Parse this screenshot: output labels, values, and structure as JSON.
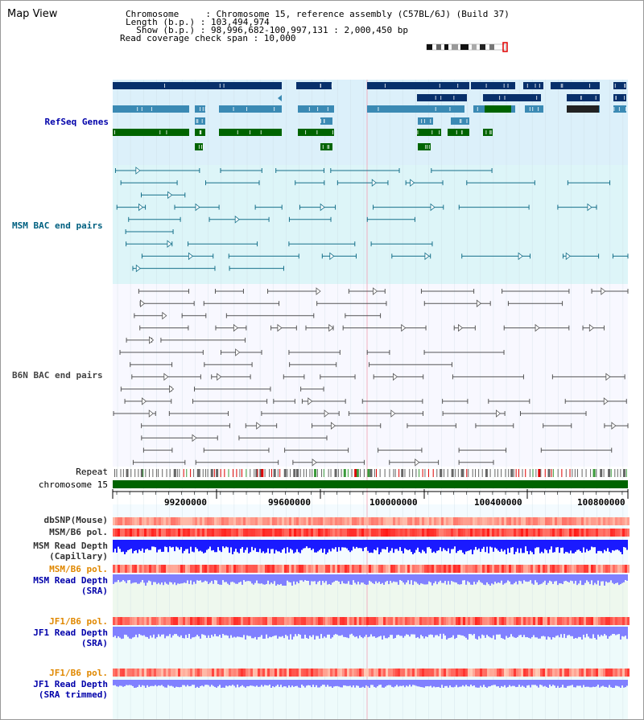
{
  "header": {
    "title": "Map View",
    "chromosome_label": "Chromosome     : Chromosome 15, reference assembly (C57BL/6J) (Build 37)",
    "length_label": "Length (b.p.) : 103,494,974",
    "show_label": "  Show (b.p.) : 98,996,682-100,997,131 : 2,000,450 bp",
    "coverage_label": "Read coverage check span : 10,000"
  },
  "tracks": {
    "refseq": "RefSeq Genes",
    "msm_bac": "MSM BAC end pairs",
    "b6n_bac": "B6N BAC end pairs",
    "repeat": "Repeat",
    "chromosome": "chromosome 15",
    "dbsnp": "dbSNP(Mouse)",
    "msm_b6_pol": "MSM/B6 pol.",
    "msm_depth_cap_1": "MSM Read Depth",
    "msm_depth_cap_2": "(Capillary)",
    "msm_b6_pol_2": "MSM/B6 pol.",
    "msm_depth_sra_1": "MSM Read Depth",
    "msm_depth_sra_2": "(SRA)",
    "jf1_b6_pol": "JF1/B6 pol.",
    "jf1_depth_sra_1": "JF1 Read Depth",
    "jf1_depth_sra_2": "(SRA)",
    "jf1_b6_pol_2": "JF1/B6 pol.",
    "jf1_depth_trim_1": "JF1 Read Depth",
    "jf1_depth_trim_2": "(SRA trimmed)"
  },
  "axis": {
    "ticks": [
      "99200000",
      "99600000",
      "100000000",
      "100400000",
      "100800000"
    ]
  },
  "colors": {
    "refseq_bg": "#dcf0fa",
    "msm_bg": "#ddf5f8",
    "b6n_bg": "#f8f8ff",
    "gene_dark": "#08306b",
    "gene_mid": "#3b8ab4",
    "gene_green": "#006400",
    "msm_line": "#16708a",
    "b6n_line": "#555555",
    "chrom_bar": "#006400",
    "depth_cap": "#1a1aff",
    "depth_sra": "#8080ff",
    "pol_red": "#ff2222",
    "label_blue": "#0000aa",
    "label_teal": "#006080",
    "label_orange": "#e08800"
  }
}
